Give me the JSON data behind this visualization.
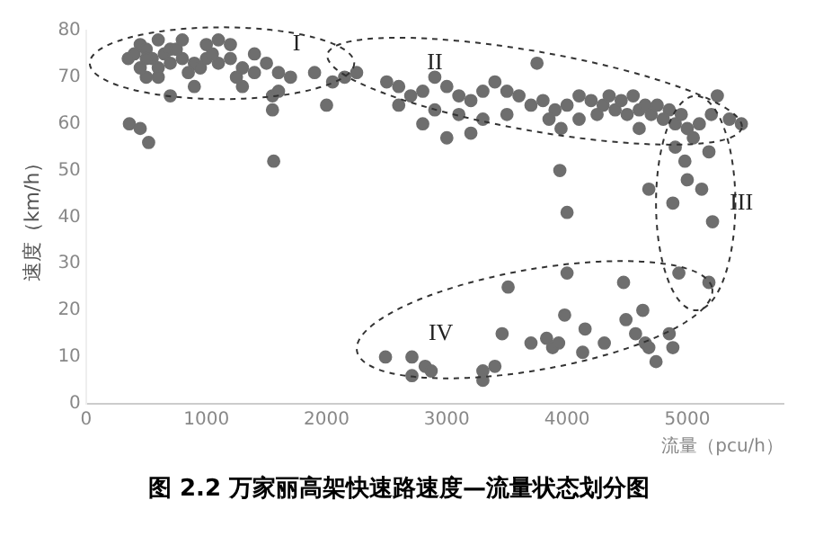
{
  "chart_data": {
    "type": "scatter",
    "title": "图 2.2 万家丽高架快速路速度—流量状态划分图",
    "xlabel": "流量（pcu/h）",
    "ylabel": "速度（km/h）",
    "xlim": [
      0,
      5800
    ],
    "xticks": [
      0,
      1000,
      2000,
      3000,
      4000,
      5000
    ],
    "ylim": [
      0,
      80
    ],
    "yticks": [
      0,
      10,
      20,
      30,
      40,
      50,
      60,
      70,
      80
    ],
    "grid": false,
    "marker": "circle",
    "series": [
      {
        "color": "#6e6e6e",
        "x": [
          400,
          450,
          500,
          550,
          600,
          650,
          700,
          450,
          500,
          600,
          700,
          800,
          900,
          1000,
          1100,
          1200,
          1300,
          1400,
          1500,
          850,
          950,
          1050,
          800,
          1100,
          1200,
          1400,
          1600,
          1700,
          1900,
          2050,
          2150,
          1550,
          1600,
          1550,
          2000,
          700,
          900,
          750,
          1000,
          600,
          500,
          350,
          1250,
          1300,
          2250,
          360,
          450,
          520,
          1560,
          2500,
          2600,
          2700,
          2800,
          2900,
          3000,
          3100,
          3200,
          3300,
          3400,
          3500,
          3600,
          3700,
          3800,
          3900,
          4000,
          4100,
          4200,
          4300,
          4400,
          4500,
          4600,
          4700,
          4800,
          4900,
          5000,
          5100,
          4250,
          4350,
          4450,
          4550,
          4650,
          4750,
          4850,
          4950,
          3500,
          3300,
          3100,
          2900,
          2800,
          2600,
          3200,
          3000,
          3850,
          3950,
          4100,
          4600,
          5050,
          5200,
          5350,
          5450,
          5250,
          3750,
          3940,
          4000,
          5120,
          4880,
          5210,
          5180,
          4980,
          4930,
          5180,
          4680,
          4900,
          5000,
          2490,
          2710,
          2710,
          2820,
          2870,
          3300,
          3300,
          3400,
          3510,
          4000,
          4470,
          3460,
          3700,
          3830,
          3880,
          3930,
          3980,
          4130,
          4150,
          4310,
          4490,
          4630,
          4570,
          4650,
          4680,
          4850,
          4880,
          4740
        ],
        "values": [
          75,
          77,
          76,
          74,
          78,
          75,
          73,
          72,
          70,
          72,
          76,
          74,
          73,
          74,
          73,
          74,
          72,
          71,
          73,
          71,
          72,
          75,
          78,
          78,
          77,
          75,
          71,
          70,
          71,
          69,
          70,
          66,
          67,
          63,
          64,
          66,
          68,
          76,
          77,
          70,
          74,
          74,
          70,
          68,
          71,
          60,
          59,
          56,
          52,
          69,
          68,
          66,
          67,
          70,
          68,
          66,
          65,
          67,
          69,
          67,
          66,
          64,
          65,
          63,
          64,
          66,
          65,
          64,
          63,
          62,
          63,
          62,
          61,
          60,
          59,
          60,
          62,
          66,
          65,
          66,
          64,
          64,
          63,
          62,
          62,
          61,
          62,
          63,
          60,
          64,
          58,
          57,
          61,
          59,
          61,
          59,
          57,
          62,
          61,
          60,
          66,
          73,
          50,
          41,
          46,
          43,
          39,
          54,
          52,
          28,
          26,
          46,
          55,
          48,
          10,
          10,
          6,
          8,
          7,
          7,
          5,
          8,
          25,
          28,
          26,
          15,
          13,
          14,
          12,
          13,
          19,
          11,
          16,
          13,
          18,
          20,
          15,
          13,
          12,
          15,
          12,
          9
        ]
      }
    ],
    "annotations": [
      "I",
      "II",
      "III",
      "IV"
    ]
  }
}
